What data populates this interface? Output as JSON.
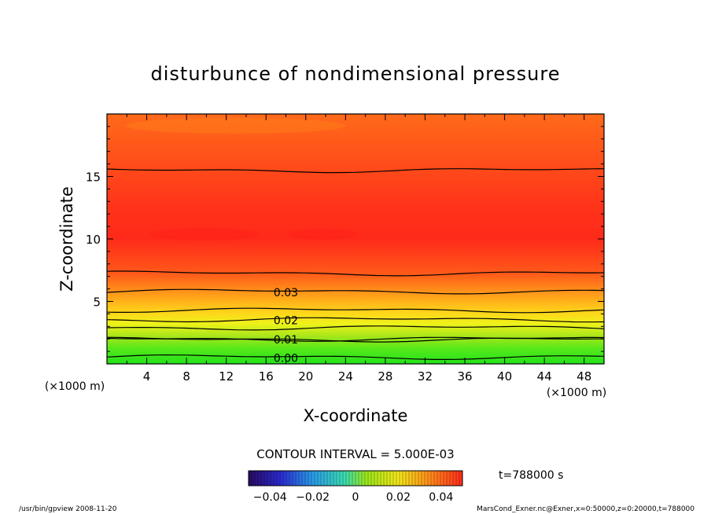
{
  "chart_data": {
    "type": "heatmap",
    "title": "disturbunce of nondimensional pressure",
    "xlabel": "X-coordinate",
    "ylabel": "Z-coordinate",
    "x_unit": "(×1000 m)",
    "y_unit": "(×1000 m)",
    "x_range": [
      0,
      50
    ],
    "y_range": [
      0,
      20
    ],
    "x_ticks": [
      4,
      8,
      12,
      16,
      20,
      24,
      28,
      32,
      36,
      40,
      44,
      48
    ],
    "y_ticks": [
      5,
      10,
      15
    ],
    "contour_interval_text": "CONTOUR INTERVAL = 5.000E-03",
    "contour_levels": [
      0.0,
      0.005,
      0.01,
      0.015,
      0.02,
      0.025,
      0.03,
      0.035,
      0.04
    ],
    "contour_labels": [
      "0.00",
      "0.01",
      "0.02",
      "0.03"
    ],
    "contours": [
      {
        "level": 0.0,
        "z": 0.55
      },
      {
        "level": 0.005,
        "z": 1.95
      },
      {
        "level": 0.01,
        "z": 2.0
      },
      {
        "level": 0.015,
        "z": 2.9
      },
      {
        "level": 0.02,
        "z": 3.55
      },
      {
        "level": 0.025,
        "z": 4.3
      },
      {
        "level": 0.03,
        "z": 5.8
      },
      {
        "level": 0.035,
        "z": 7.25
      },
      {
        "level": 0.04,
        "z": 15.5
      }
    ],
    "colorbar": {
      "min": -0.05,
      "max": 0.05,
      "tick_values": [
        -0.04,
        -0.02,
        0,
        0.02,
        0.04
      ],
      "tick_labels": [
        "−0.04",
        "−0.02",
        "0",
        "0.02",
        "0.04"
      ]
    },
    "time_label": "t=788000 s"
  },
  "footer": {
    "left": "/usr/bin/gpview  2008-11-20",
    "right": "MarsCond_Exner.nc@Exner,x=0:50000,z=0:20000,t=788000"
  }
}
